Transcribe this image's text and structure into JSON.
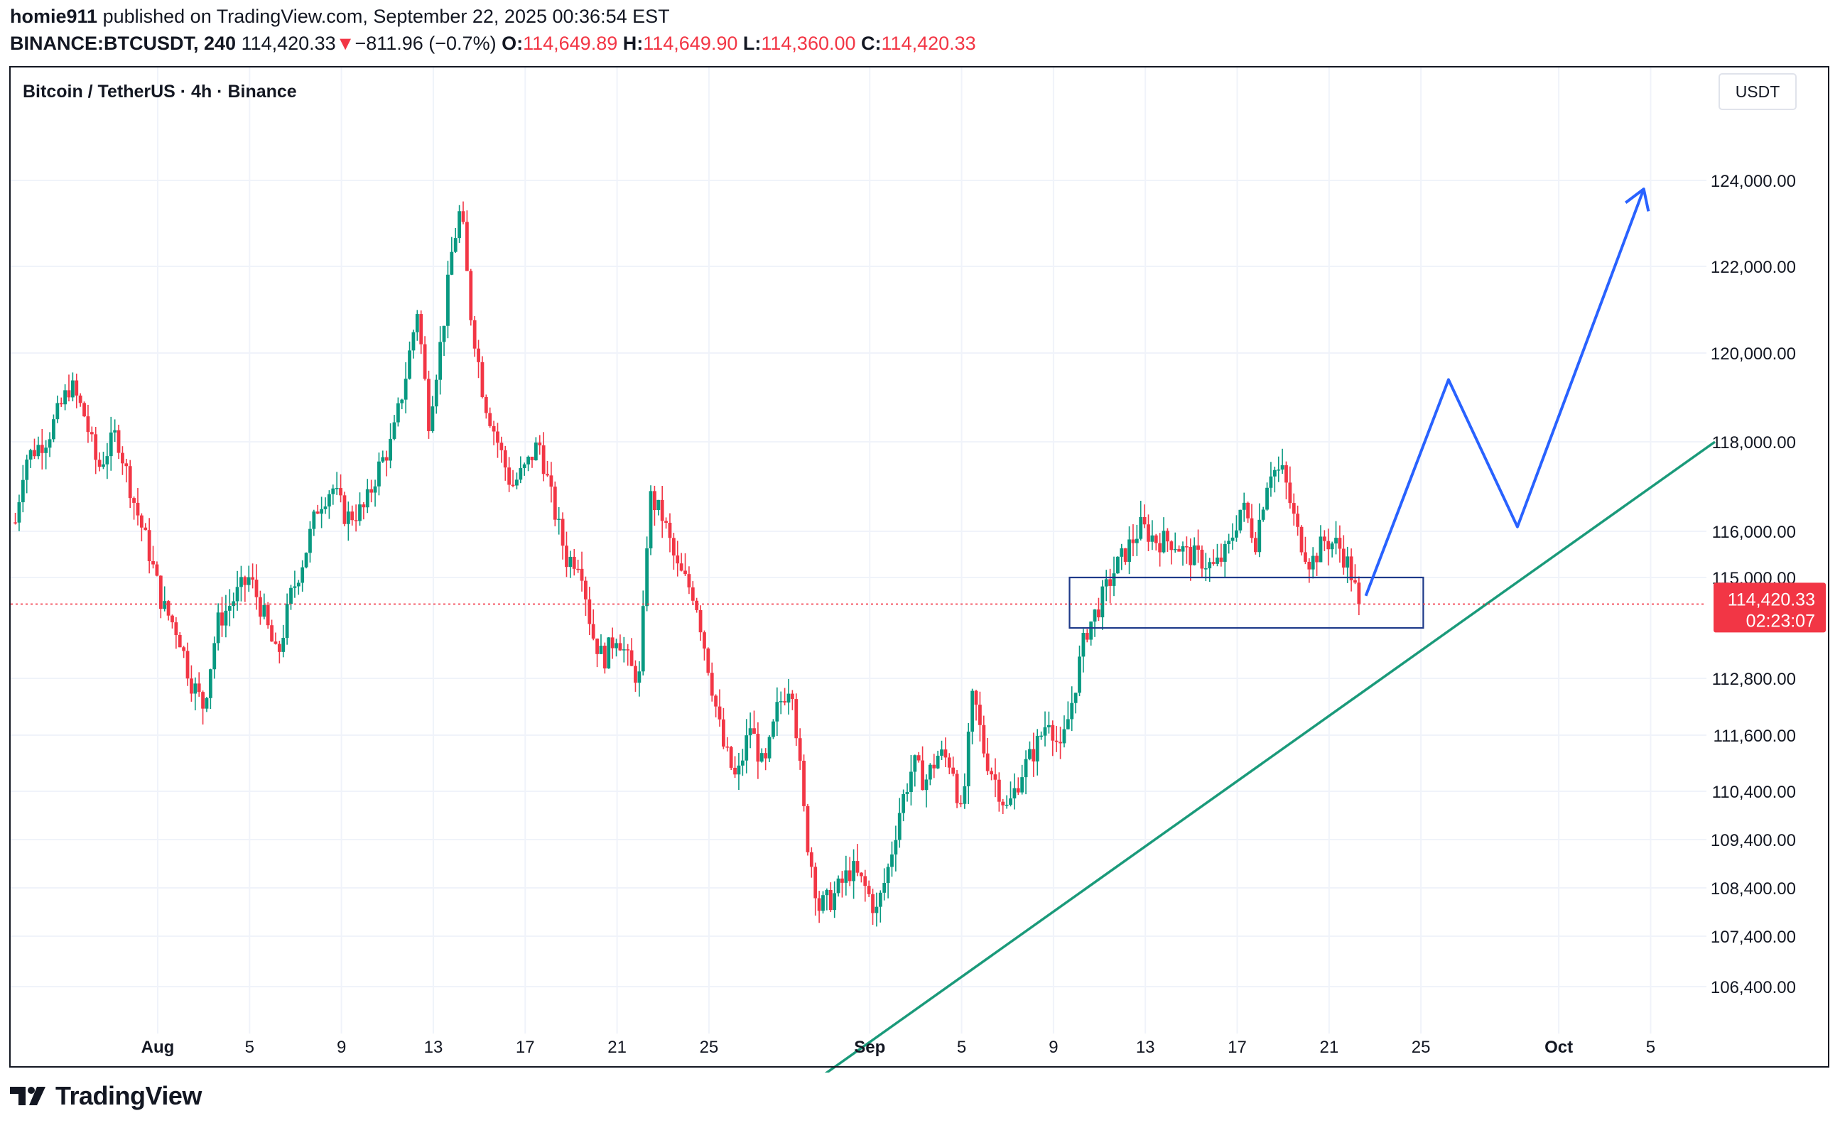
{
  "header": {
    "author": "homie911",
    "published_text": " published on TradingView.com, September 22, 2025 00:36:54 EST",
    "symbol": "BINANCE:BTCUSDT, 240",
    "last": "114,420.33",
    "change_arrow": "▼",
    "change": "−811.96 (−0.7%)",
    "o_label": "O:",
    "o_val": "114,649.89",
    "h_label": "H:",
    "h_val": "114,649.90",
    "l_label": "L:",
    "l_val": "114,360.00",
    "c_label": "C:",
    "c_val": "114,420.33"
  },
  "footer": {
    "brand": "TradingView"
  },
  "colors": {
    "up": "#089981",
    "down": "#f23645",
    "trend": "#1a9a7a",
    "projection": "#2962ff",
    "box": "#1e3a8a",
    "grid": "#f0f3fa"
  },
  "chart_data": {
    "type": "candlestick",
    "title": "Bitcoin / TetherUS · 4h · Binance",
    "currency": "USDT",
    "y_axis_labels": [
      "124,000.00",
      "122,000.00",
      "120,000.00",
      "118,000.00",
      "116,000.00",
      "115,000.00",
      "112,800.00",
      "111,600.00",
      "110,400.00",
      "109,400.00",
      "108,400.00",
      "107,400.00",
      "106,400.00"
    ],
    "x_axis_labels": [
      {
        "label": "Aug",
        "day": 1,
        "bold": true
      },
      {
        "label": "5",
        "day": 5
      },
      {
        "label": "9",
        "day": 9
      },
      {
        "label": "13",
        "day": 13
      },
      {
        "label": "17",
        "day": 17
      },
      {
        "label": "21",
        "day": 21
      },
      {
        "label": "25",
        "day": 25
      },
      {
        "label": "Sep",
        "day": 32,
        "bold": true
      },
      {
        "label": "5",
        "day": 36
      },
      {
        "label": "9",
        "day": 40
      },
      {
        "label": "13",
        "day": 44
      },
      {
        "label": "17",
        "day": 48
      },
      {
        "label": "21",
        "day": 52
      },
      {
        "label": "25",
        "day": 56
      },
      {
        "label": "Oct",
        "day": 62,
        "bold": true
      },
      {
        "label": "5",
        "day": 66
      }
    ],
    "last_price_label": "114,420.33",
    "countdown": "02:23:07",
    "price_anchors": [
      {
        "day": -5.2,
        "price": 116200
      },
      {
        "day": -4.8,
        "price": 117600
      },
      {
        "day": -3.8,
        "price": 118100
      },
      {
        "day": -2.8,
        "price": 119300
      },
      {
        "day": -2.2,
        "price": 118600
      },
      {
        "day": -1.6,
        "price": 117400
      },
      {
        "day": -0.8,
        "price": 118200
      },
      {
        "day": 0.0,
        "price": 116600
      },
      {
        "day": 0.6,
        "price": 115600
      },
      {
        "day": 1.2,
        "price": 114400
      },
      {
        "day": 1.9,
        "price": 113800
      },
      {
        "day": 2.4,
        "price": 112800
      },
      {
        "day": 3.0,
        "price": 112200
      },
      {
        "day": 3.6,
        "price": 114000
      },
      {
        "day": 4.4,
        "price": 114600
      },
      {
        "day": 5.0,
        "price": 115000
      },
      {
        "day": 5.6,
        "price": 114200
      },
      {
        "day": 6.2,
        "price": 113200
      },
      {
        "day": 6.8,
        "price": 114600
      },
      {
        "day": 7.4,
        "price": 115500
      },
      {
        "day": 8.0,
        "price": 116600
      },
      {
        "day": 8.6,
        "price": 117000
      },
      {
        "day": 9.2,
        "price": 116300
      },
      {
        "day": 10.0,
        "price": 116500
      },
      {
        "day": 10.6,
        "price": 117400
      },
      {
        "day": 11.2,
        "price": 118000
      },
      {
        "day": 11.8,
        "price": 119500
      },
      {
        "day": 12.3,
        "price": 121000
      },
      {
        "day": 12.8,
        "price": 118500
      },
      {
        "day": 13.4,
        "price": 120500
      },
      {
        "day": 13.8,
        "price": 122300
      },
      {
        "day": 14.2,
        "price": 123400
      },
      {
        "day": 14.6,
        "price": 121000
      },
      {
        "day": 15.2,
        "price": 119000
      },
      {
        "day": 15.8,
        "price": 118000
      },
      {
        "day": 16.4,
        "price": 117000
      },
      {
        "day": 17.0,
        "price": 117400
      },
      {
        "day": 17.6,
        "price": 118000
      },
      {
        "day": 18.2,
        "price": 116600
      },
      {
        "day": 18.8,
        "price": 115400
      },
      {
        "day": 19.4,
        "price": 115400
      },
      {
        "day": 19.9,
        "price": 113800
      },
      {
        "day": 20.4,
        "price": 113200
      },
      {
        "day": 21.0,
        "price": 113800
      },
      {
        "day": 21.6,
        "price": 113000
      },
      {
        "day": 22.0,
        "price": 112800
      },
      {
        "day": 22.4,
        "price": 116800
      },
      {
        "day": 23.0,
        "price": 116300
      },
      {
        "day": 23.6,
        "price": 115200
      },
      {
        "day": 24.4,
        "price": 114600
      },
      {
        "day": 25.0,
        "price": 113000
      },
      {
        "day": 25.6,
        "price": 111400
      },
      {
        "day": 26.2,
        "price": 110600
      },
      {
        "day": 26.8,
        "price": 111800
      },
      {
        "day": 27.4,
        "price": 110800
      },
      {
        "day": 28.0,
        "price": 112200
      },
      {
        "day": 28.6,
        "price": 112800
      },
      {
        "day": 29.2,
        "price": 109600
      },
      {
        "day": 29.8,
        "price": 108000
      },
      {
        "day": 30.4,
        "price": 108200
      },
      {
        "day": 31.2,
        "price": 108800
      },
      {
        "day": 31.8,
        "price": 108400
      },
      {
        "day": 32.3,
        "price": 107900
      },
      {
        "day": 32.8,
        "price": 108800
      },
      {
        "day": 33.3,
        "price": 110000
      },
      {
        "day": 33.9,
        "price": 111000
      },
      {
        "day": 34.4,
        "price": 110600
      },
      {
        "day": 35.0,
        "price": 111200
      },
      {
        "day": 35.6,
        "price": 111000
      },
      {
        "day": 36.0,
        "price": 109800
      },
      {
        "day": 36.5,
        "price": 112500
      },
      {
        "day": 37.0,
        "price": 111200
      },
      {
        "day": 37.5,
        "price": 110600
      },
      {
        "day": 38.0,
        "price": 110000
      },
      {
        "day": 38.6,
        "price": 110800
      },
      {
        "day": 39.2,
        "price": 111300
      },
      {
        "day": 39.8,
        "price": 112000
      },
      {
        "day": 40.3,
        "price": 111200
      },
      {
        "day": 40.8,
        "price": 112300
      },
      {
        "day": 41.4,
        "price": 113800
      },
      {
        "day": 42.0,
        "price": 114400
      },
      {
        "day": 42.6,
        "price": 115100
      },
      {
        "day": 43.2,
        "price": 115600
      },
      {
        "day": 43.8,
        "price": 116100
      },
      {
        "day": 44.5,
        "price": 115800
      },
      {
        "day": 45.2,
        "price": 115800
      },
      {
        "day": 45.8,
        "price": 115500
      },
      {
        "day": 46.4,
        "price": 115400
      },
      {
        "day": 47.0,
        "price": 115200
      },
      {
        "day": 47.6,
        "price": 115600
      },
      {
        "day": 48.2,
        "price": 116600
      },
      {
        "day": 48.8,
        "price": 115800
      },
      {
        "day": 49.4,
        "price": 117400
      },
      {
        "day": 50.0,
        "price": 117300
      },
      {
        "day": 50.6,
        "price": 116000
      },
      {
        "day": 51.2,
        "price": 115300
      },
      {
        "day": 51.8,
        "price": 115800
      },
      {
        "day": 52.4,
        "price": 115700
      },
      {
        "day": 52.9,
        "price": 115200
      },
      {
        "day": 53.3,
        "price": 114420
      }
    ],
    "annotations": {
      "trendline": [
        {
          "day": 28.6,
          "price": 104200
        },
        {
          "day": 68.8,
          "price": 118000
        }
      ],
      "zone": {
        "day_start": 40.7,
        "day_end": 56.1,
        "price_low": 113900,
        "price_high": 115000
      },
      "projection": [
        {
          "day": 53.6,
          "price": 114600
        },
        {
          "day": 57.2,
          "price": 119400
        },
        {
          "day": 60.2,
          "price": 116100
        },
        {
          "day": 65.7,
          "price": 123800
        }
      ]
    },
    "y_scale_note": "non-linear axis as printed; anchors map label positions"
  }
}
